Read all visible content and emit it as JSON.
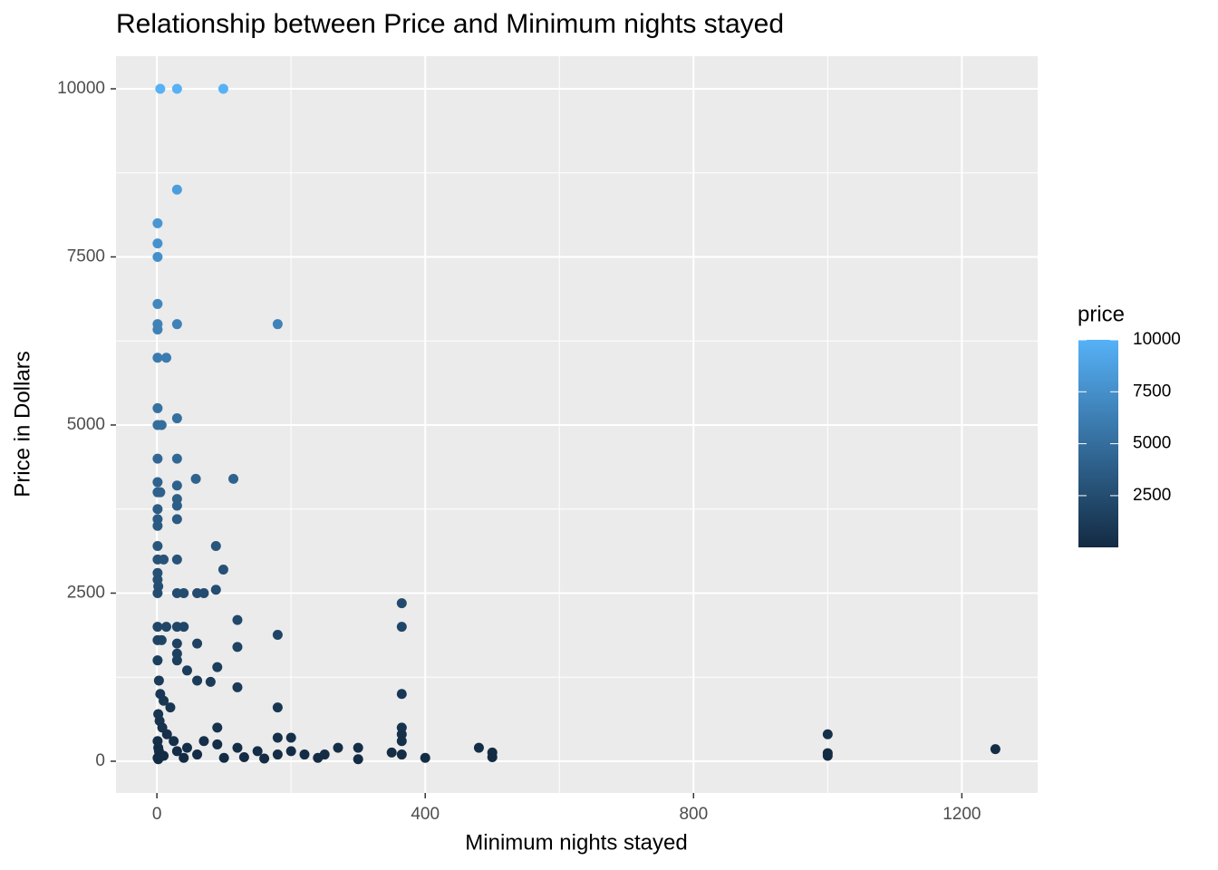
{
  "chart_data": {
    "type": "scatter",
    "title": "Relationship between Price and Minimum nights stayed",
    "x_label": "Minimum nights stayed",
    "y_label": "Price in Dollars",
    "x": [
      5,
      30,
      99,
      30,
      1,
      1,
      1,
      1,
      1,
      1,
      30,
      180,
      1,
      14,
      1,
      1,
      7,
      30,
      1,
      30,
      1,
      1,
      5,
      30,
      58,
      114,
      30,
      30,
      1,
      1,
      1,
      30,
      88,
      1,
      1,
      10,
      30,
      99,
      1,
      1,
      2,
      1,
      30,
      40,
      60,
      70,
      88,
      120,
      1,
      14,
      30,
      40,
      180,
      365,
      365,
      120,
      1,
      7,
      30,
      60,
      30,
      30,
      45,
      90,
      80,
      60,
      120,
      365,
      180,
      1,
      3,
      5,
      10,
      20,
      2,
      4,
      8,
      15,
      25,
      1,
      2,
      3,
      5,
      1,
      2,
      10,
      30,
      45,
      60,
      90,
      90,
      120,
      150,
      180,
      200,
      200,
      180,
      220,
      240,
      270,
      300,
      300,
      365,
      365,
      365,
      365,
      400,
      480,
      500,
      500,
      1000,
      1000,
      1000,
      1250,
      40,
      70,
      100,
      130,
      160,
      350,
      250
    ],
    "values": [
      10000,
      10000,
      10000,
      8500,
      8000,
      7700,
      7500,
      6800,
      6500,
      6420,
      6500,
      6500,
      6000,
      6000,
      5250,
      5000,
      5000,
      5100,
      4500,
      4500,
      4150,
      4000,
      4000,
      4100,
      4200,
      4200,
      3900,
      3800,
      3750,
      3600,
      3500,
      3600,
      3200,
      3200,
      3000,
      3000,
      3000,
      2850,
      2800,
      2700,
      2600,
      2500,
      2500,
      2500,
      2500,
      2500,
      2550,
      2100,
      2000,
      2000,
      2000,
      2000,
      1880,
      2350,
      2000,
      1700,
      1800,
      1800,
      1750,
      1750,
      1600,
      1500,
      1350,
      1400,
      1180,
      1200,
      1100,
      1000,
      800,
      1500,
      1200,
      1000,
      900,
      800,
      700,
      600,
      500,
      400,
      300,
      300,
      200,
      150,
      100,
      50,
      30,
      80,
      150,
      200,
      100,
      500,
      250,
      200,
      150,
      350,
      350,
      150,
      100,
      100,
      50,
      200,
      200,
      30,
      500,
      400,
      300,
      100,
      50,
      200,
      130,
      60,
      400,
      120,
      80,
      180,
      50,
      300,
      50,
      60,
      40,
      130,
      100
    ],
    "xlim": [
      -61,
      1313
    ],
    "ylim": [
      -472,
      10485
    ],
    "xticks": [
      0,
      400,
      800,
      1200
    ],
    "yticks": [
      0,
      2500,
      5000,
      7500,
      10000
    ],
    "x_minor_grid": [
      200,
      600,
      1000
    ],
    "y_minor_grid": [
      1250,
      3750,
      6250,
      8750
    ],
    "grid": true,
    "color_scale": {
      "title": "price",
      "low": "#132B43",
      "high": "#56B1F7",
      "lim": [
        10,
        10000
      ],
      "ticks": [
        2500,
        5000,
        7500,
        10000
      ]
    }
  }
}
